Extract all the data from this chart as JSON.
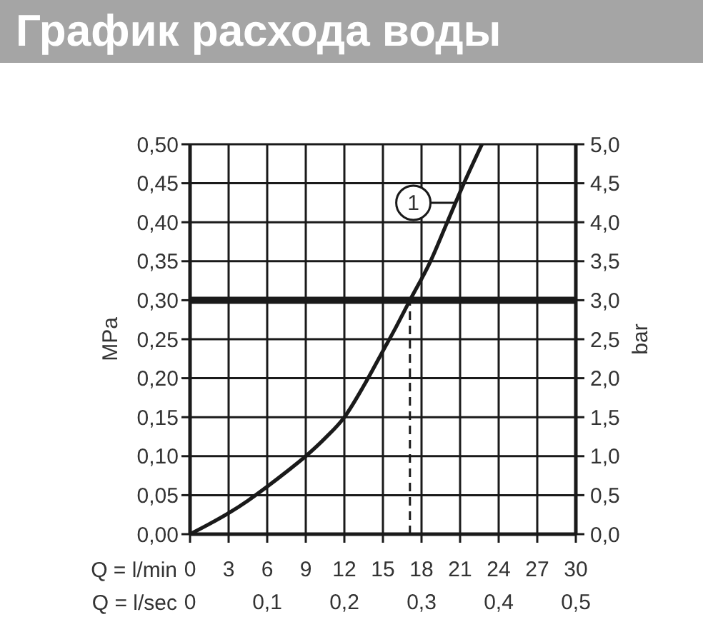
{
  "chart_data": {
    "type": "line",
    "title": "График расхода воды",
    "xlabel": "Q = l/min",
    "x2label": "Q = l/sec",
    "ylabel": "MPa",
    "y2label": "bar",
    "x": [
      0,
      1.5,
      3,
      4.5,
      6,
      7.5,
      9,
      10.5,
      12,
      13.5,
      15,
      16,
      17.1,
      18.7,
      20,
      21.3,
      22.7
    ],
    "series": [
      {
        "color": "#1a1a1a",
        "values": [
          0,
          0.013,
          0.027,
          0.043,
          0.061,
          0.08,
          0.1,
          0.123,
          0.15,
          0.19,
          0.235,
          0.265,
          0.3,
          0.35,
          0.4,
          0.45,
          0.5
        ]
      }
    ],
    "xlim": [
      0,
      30
    ],
    "xticks": [
      0,
      3,
      6,
      9,
      12,
      15,
      18,
      21,
      24,
      27,
      30
    ],
    "x2lim": [
      0,
      0.5
    ],
    "x2ticks": [
      0,
      {
        "value": 0.1,
        "label": "0,1"
      },
      {
        "value": 0.2,
        "label": "0,2"
      },
      {
        "value": 0.3,
        "label": "0,3"
      },
      {
        "value": 0.4,
        "label": "0,4"
      },
      {
        "value": 0.5,
        "label": "0,5"
      }
    ],
    "ylim": [
      0,
      0.5
    ],
    "yticks": [
      {
        "value": 0,
        "label": "0,00"
      },
      {
        "value": 0.05,
        "label": "0,05"
      },
      {
        "value": 0.1,
        "label": "0,10"
      },
      {
        "value": 0.15,
        "label": "0,15"
      },
      {
        "value": 0.2,
        "label": "0,20"
      },
      {
        "value": 0.25,
        "label": "0,25"
      },
      {
        "value": 0.3,
        "label": "0,30"
      },
      {
        "value": 0.35,
        "label": "0,35"
      },
      {
        "value": 0.4,
        "label": "0,40"
      },
      {
        "value": 0.45,
        "label": "0,45"
      },
      {
        "value": 0.5,
        "label": "0,50"
      }
    ],
    "y2lim": [
      0,
      5
    ],
    "y2ticks": [
      {
        "value": 0,
        "label": "0,0"
      },
      {
        "value": 0.5,
        "label": "0,5"
      },
      {
        "value": 1,
        "label": "1,0"
      },
      {
        "value": 1.5,
        "label": "1,5"
      },
      {
        "value": 2,
        "label": "2,0"
      },
      {
        "value": 2.5,
        "label": "2,5"
      },
      {
        "value": 3,
        "label": "3,0"
      },
      {
        "value": 3.5,
        "label": "3,5"
      },
      {
        "value": 4,
        "label": "4,0"
      },
      {
        "value": 4.5,
        "label": "4,5"
      },
      {
        "value": 5,
        "label": "5,0"
      }
    ],
    "ref_lines": [
      {
        "axis": "y",
        "value": 0.3,
        "color": "#1a1a1a"
      },
      {
        "axis": "x",
        "value": 17.1,
        "color": "#1a1a1a",
        "line_style": "dashed"
      }
    ],
    "annotations": [
      {
        "text": "1",
        "x": 20.7,
        "y": 0.425
      }
    ],
    "grid": true,
    "line_style": "solid"
  }
}
